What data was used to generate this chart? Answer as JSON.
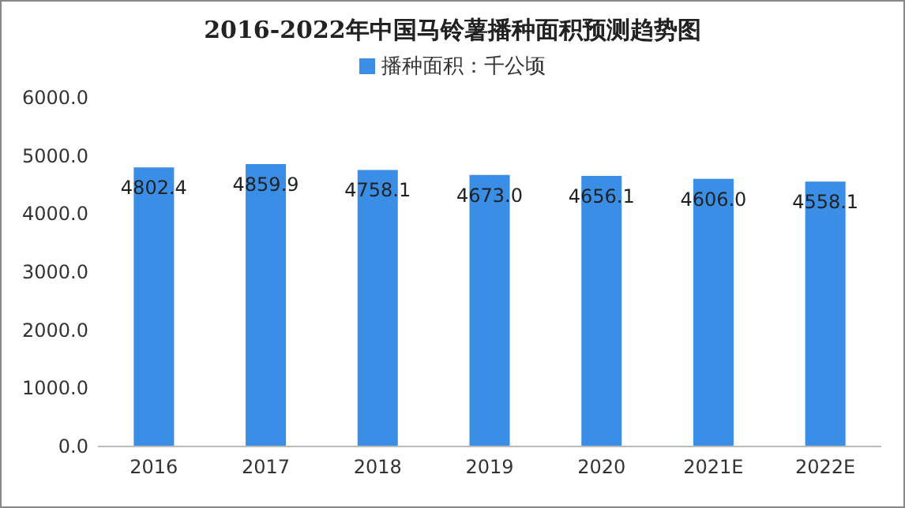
{
  "chart_data": {
    "type": "bar",
    "title": "2016-2022年中国马铃薯播种面积预测趋势图",
    "categories": [
      "2016",
      "2017",
      "2018",
      "2019",
      "2020",
      "2021E",
      "2022E"
    ],
    "series": [
      {
        "name": "播种面积：千公顷",
        "color": "#3a8ee6",
        "values": [
          4802.4,
          4859.9,
          4758.1,
          4673.0,
          4656.1,
          4606.0,
          4558.1
        ],
        "value_labels": [
          "4802.4",
          "4859.9",
          "4758.1",
          "4673.0",
          "4656.1",
          "4606.0",
          "4558.1"
        ]
      }
    ],
    "ylim": [
      0,
      6000
    ],
    "yticks": [
      {
        "value": 0,
        "label": "0.0"
      },
      {
        "value": 1000,
        "label": "1000.0"
      },
      {
        "value": 2000,
        "label": "2000.0"
      },
      {
        "value": 3000,
        "label": "3000.0"
      },
      {
        "value": 4000,
        "label": "4000.0"
      },
      {
        "value": 5000,
        "label": "5000.0"
      },
      {
        "value": 6000,
        "label": "6000.0"
      }
    ],
    "legend": "top",
    "grid": false
  }
}
